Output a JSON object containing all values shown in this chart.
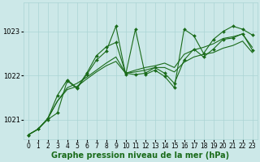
{
  "title": "Graphe pression niveau de la mer (hPa)",
  "bg_color": "#cce8e8",
  "grid_color": "#aad4d4",
  "line_color": "#1a6b1a",
  "xlim": [
    -0.5,
    23.5
  ],
  "ylim": [
    1020.55,
    1023.65
  ],
  "yticks": [
    1021,
    1022,
    1023
  ],
  "xticks": [
    0,
    1,
    2,
    3,
    4,
    5,
    6,
    7,
    8,
    9,
    10,
    11,
    12,
    13,
    14,
    15,
    16,
    17,
    18,
    19,
    20,
    21,
    22,
    23
  ],
  "series1_x": [
    0,
    1,
    2,
    3,
    4,
    5,
    6,
    7,
    8,
    9,
    10,
    11,
    12,
    13,
    14,
    15,
    16,
    17,
    18,
    19,
    20,
    21,
    22,
    23
  ],
  "series1_y": [
    1020.65,
    1020.78,
    1021.0,
    1021.15,
    1021.88,
    1021.7,
    1022.02,
    1022.35,
    1022.55,
    1023.12,
    1022.02,
    1023.05,
    1022.02,
    1022.12,
    1021.98,
    1021.72,
    1023.05,
    1022.9,
    1022.5,
    1022.82,
    1023.0,
    1023.12,
    1023.05,
    1022.92
  ],
  "series2_x": [
    0,
    1,
    2,
    3,
    4,
    5,
    6,
    7,
    8,
    9,
    10,
    11,
    12,
    13,
    14,
    15,
    16,
    17,
    18,
    19,
    20,
    21,
    22,
    23
  ],
  "series2_y": [
    1020.65,
    1020.78,
    1021.02,
    1021.55,
    1021.9,
    1021.72,
    1022.05,
    1022.45,
    1022.65,
    1022.75,
    1022.05,
    1022.02,
    1022.05,
    1022.18,
    1022.05,
    1021.82,
    1022.35,
    1022.6,
    1022.42,
    1022.6,
    1022.82,
    1022.85,
    1022.95,
    1022.58
  ],
  "series3_y": [
    1020.65,
    1020.78,
    1021.02,
    1021.42,
    1021.68,
    1021.75,
    1021.92,
    1022.08,
    1022.22,
    1022.32,
    1022.05,
    1022.08,
    1022.12,
    1022.18,
    1022.18,
    1022.08,
    1022.3,
    1022.42,
    1022.48,
    1022.52,
    1022.62,
    1022.68,
    1022.78,
    1022.52
  ],
  "series4_y": [
    1020.65,
    1020.78,
    1021.02,
    1021.42,
    1021.72,
    1021.82,
    1021.96,
    1022.12,
    1022.28,
    1022.42,
    1022.05,
    1022.12,
    1022.18,
    1022.22,
    1022.28,
    1022.18,
    1022.48,
    1022.58,
    1022.64,
    1022.72,
    1022.84,
    1022.88,
    1022.94,
    1022.64
  ],
  "xlabel_color": "#1a6b1a",
  "xlabel_fontsize": 7,
  "tick_fontsize": 5.5,
  "ytick_fontsize": 6
}
